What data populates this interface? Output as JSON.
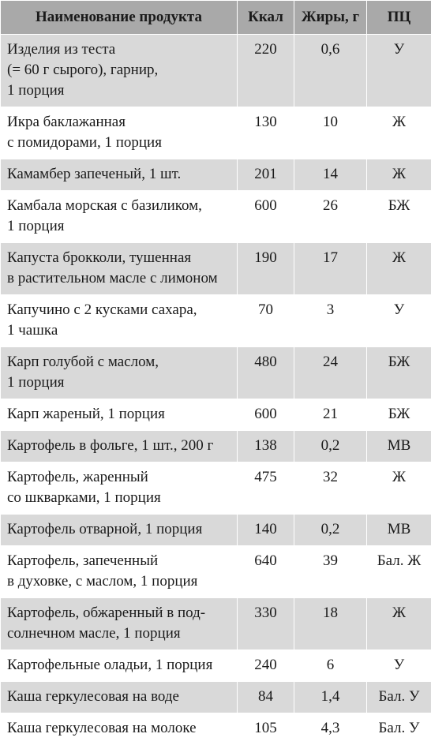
{
  "headers": {
    "name": "Наименование продукта",
    "kcal": "Ккал",
    "fat": "Жиры, г",
    "pc": "ПЦ"
  },
  "rows": [
    {
      "name": "Изделия из теста\n(= 60 г сырого), гарнир,\n1 порция",
      "kcal": "220",
      "fat": "0,6",
      "pc": "У"
    },
    {
      "name": "Икра баклажанная\nс помидорами, 1 порция",
      "kcal": "130",
      "fat": "10",
      "pc": "Ж"
    },
    {
      "name": "Камамбер запеченый, 1 шт.",
      "kcal": "201",
      "fat": "14",
      "pc": "Ж"
    },
    {
      "name": "Камбала морская с базиликом,\n1 порция",
      "kcal": "600",
      "fat": "26",
      "pc": "БЖ"
    },
    {
      "name": "Капуста брокколи, тушенная\nв растительном масле с лимоном",
      "kcal": "190",
      "fat": "17",
      "pc": "Ж"
    },
    {
      "name": "Капучино с 2 кусками сахара,\n1 чашка",
      "kcal": "70",
      "fat": "3",
      "pc": "У"
    },
    {
      "name": "Карп голубой с маслом,\n1 порция",
      "kcal": "480",
      "fat": "24",
      "pc": "БЖ"
    },
    {
      "name": "Карп жареный, 1 порция",
      "kcal": "600",
      "fat": "21",
      "pc": "БЖ"
    },
    {
      "name": "Картофель в фольге, 1 шт., 200 г",
      "kcal": "138",
      "fat": "0,2",
      "pc": "МВ"
    },
    {
      "name": "Картофель, жаренный\nсо шкварками, 1 порция",
      "kcal": "475",
      "fat": "32",
      "pc": "Ж"
    },
    {
      "name": "Картофель отварной, 1 порция",
      "kcal": "140",
      "fat": "0,2",
      "pc": "МВ"
    },
    {
      "name": "Картофель, запеченный\nв духовке, с маслом, 1 порция",
      "kcal": "640",
      "fat": "39",
      "pc": "Бал. Ж"
    },
    {
      "name": "Картофель, обжаренный в под-\nсолнечном масле, 1 порция",
      "kcal": "330",
      "fat": "18",
      "pc": "Ж"
    },
    {
      "name": "Картофельные оладьи, 1 порция",
      "kcal": "240",
      "fat": "6",
      "pc": "У"
    },
    {
      "name": "Каша геркулесовая на воде",
      "kcal": "84",
      "fat": "1,4",
      "pc": "Бал. У"
    },
    {
      "name": "Каша геркулесовая на молоке",
      "kcal": "105",
      "fat": "4,3",
      "pc": "Бал. У"
    }
  ],
  "colors": {
    "header_bg": "#a9a9a9",
    "row_shaded": "#d9d9d9",
    "row_plain": "#ffffff"
  }
}
